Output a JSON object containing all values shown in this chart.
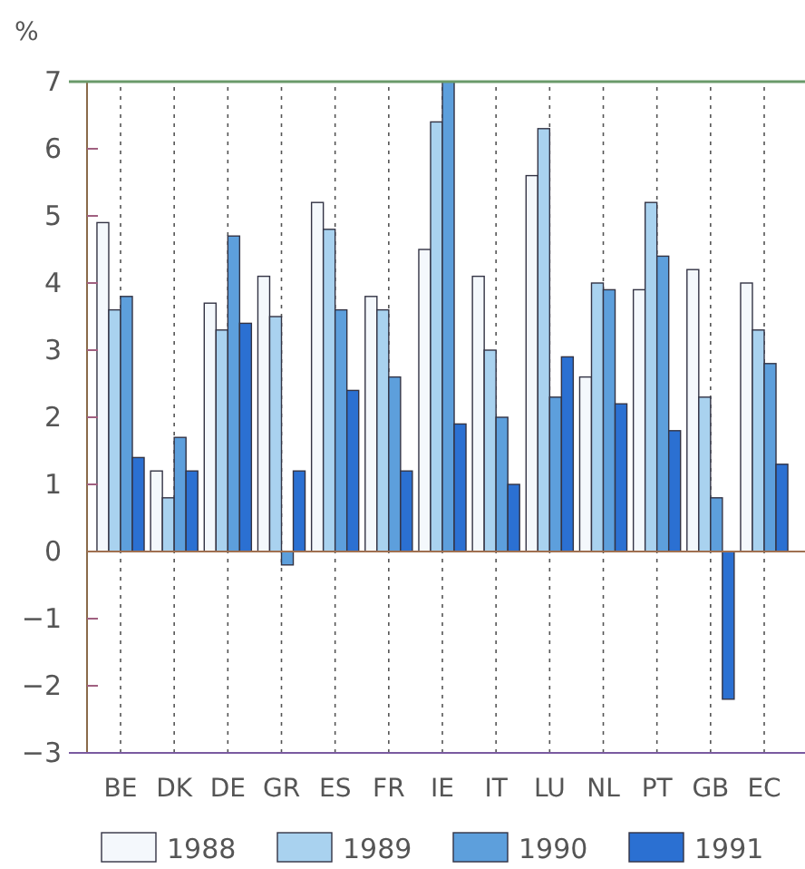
{
  "chart_data": {
    "type": "bar",
    "ylabel": "%",
    "categories": [
      "BE",
      "DK",
      "DE",
      "GR",
      "ES",
      "FR",
      "IE",
      "IT",
      "LU",
      "NL",
      "PT",
      "GB",
      "EC"
    ],
    "series": [
      {
        "name": "1988",
        "color": "#f4f8fc",
        "values": [
          4.9,
          1.2,
          3.7,
          4.1,
          5.2,
          3.8,
          4.5,
          4.1,
          5.6,
          2.6,
          3.9,
          4.2,
          4.0
        ]
      },
      {
        "name": "1989",
        "color": "#a9d2ef",
        "values": [
          3.6,
          0.8,
          3.3,
          3.5,
          4.8,
          3.6,
          6.4,
          3.0,
          6.3,
          4.0,
          5.2,
          2.3,
          3.3
        ]
      },
      {
        "name": "1990",
        "color": "#5d9fdc",
        "values": [
          3.8,
          1.7,
          4.7,
          -0.2,
          3.6,
          2.6,
          7.0,
          2.0,
          2.3,
          3.9,
          4.4,
          0.8,
          2.8
        ]
      },
      {
        "name": "1991",
        "color": "#2b70d2",
        "values": [
          1.4,
          1.2,
          3.4,
          1.2,
          2.4,
          1.2,
          1.9,
          1.0,
          2.9,
          2.2,
          1.8,
          -2.2,
          1.3
        ]
      }
    ],
    "ylim": [
      -3,
      7
    ],
    "yticks": [
      -3,
      -2,
      -1,
      0,
      1,
      2,
      3,
      4,
      5,
      6,
      7
    ],
    "ref_lines": [
      {
        "axis": "y",
        "value": 0,
        "color": "#a07050"
      }
    ],
    "grid": "x",
    "legend": "bottom"
  }
}
